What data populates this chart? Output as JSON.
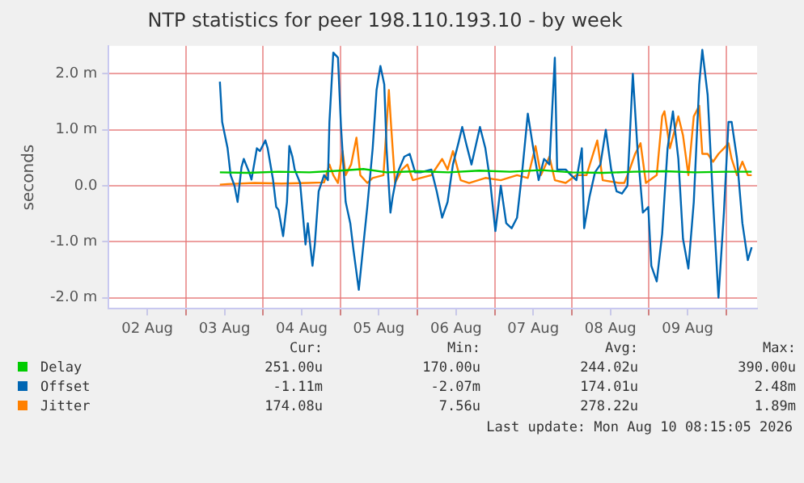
{
  "chart_data": {
    "type": "line",
    "title": "NTP statistics for peer 198.110.193.10 - by week",
    "ylabel": "seconds",
    "xlim": [
      "2026-08-02T00:00",
      "2026-08-10T09:36"
    ],
    "xticks": [
      {
        "value": "2026-08-02T12:00",
        "label": "02 Aug"
      },
      {
        "value": "2026-08-03T00:00",
        "label": null
      },
      {
        "value": "2026-08-03T12:00",
        "label": "03 Aug"
      },
      {
        "value": "2026-08-04T00:00",
        "label": null
      },
      {
        "value": "2026-08-04T12:00",
        "label": "04 Aug"
      },
      {
        "value": "2026-08-05T00:00",
        "label": null
      },
      {
        "value": "2026-08-05T12:00",
        "label": "05 Aug"
      },
      {
        "value": "2026-08-06T00:00",
        "label": null
      },
      {
        "value": "2026-08-06T12:00",
        "label": "06 Aug"
      },
      {
        "value": "2026-08-07T00:00",
        "label": null
      },
      {
        "value": "2026-08-07T12:00",
        "label": "07 Aug"
      },
      {
        "value": "2026-08-08T00:00",
        "label": null
      },
      {
        "value": "2026-08-08T12:00",
        "label": "08 Aug"
      },
      {
        "value": "2026-08-09T00:00",
        "label": null
      },
      {
        "value": "2026-08-09T12:00",
        "label": "09 Aug"
      },
      {
        "value": "2026-08-10T00:00",
        "label": null
      }
    ],
    "ylim": [
      -2.2,
      2.5
    ],
    "yticks": [
      {
        "value": -2,
        "label": "-2.0 m"
      },
      {
        "value": -1,
        "label": "-1.0 m"
      },
      {
        "value": 0,
        "label": "0.0"
      },
      {
        "value": 1,
        "label": "1.0 m"
      },
      {
        "value": 2,
        "label": "2.0 m"
      }
    ],
    "grid": true,
    "legend": "bottom",
    "marker": "none",
    "line_style": "solid",
    "series": [
      {
        "name": "Delay",
        "color": "#00cc00",
        "x": [
          "2026-08-03T10:34",
          "2026-08-03T19:12",
          "2026-08-04T04:48",
          "2026-08-04T14:24",
          "2026-08-05T00:00",
          "2026-08-05T07:12",
          "2026-08-05T14:24",
          "2026-08-06T00:00",
          "2026-08-06T09:36",
          "2026-08-06T19:12",
          "2026-08-07T04:48",
          "2026-08-07T14:24",
          "2026-08-08T00:00",
          "2026-08-08T09:36",
          "2026-08-08T19:12",
          "2026-08-09T04:48",
          "2026-08-09T14:24",
          "2026-08-10T00:00",
          "2026-08-10T07:55"
        ],
        "values": [
          0.24,
          0.23,
          0.25,
          0.24,
          0.27,
          0.3,
          0.24,
          0.26,
          0.24,
          0.27,
          0.25,
          0.28,
          0.24,
          0.23,
          0.25,
          0.26,
          0.24,
          0.25,
          0.25
        ]
      },
      {
        "name": "Offset",
        "color": "#0066b3",
        "x": [
          "2026-08-03T10:34",
          "2026-08-03T11:17",
          "2026-08-03T12:58",
          "2026-08-03T13:55",
          "2026-08-03T15:07",
          "2026-08-03T16:05",
          "2026-08-03T17:17",
          "2026-08-03T18:00",
          "2026-08-03T19:41",
          "2026-08-03T20:24",
          "2026-08-03T22:05",
          "2026-08-03T23:02",
          "2026-08-04T00:43",
          "2026-08-04T01:26",
          "2026-08-04T03:07",
          "2026-08-04T04:05",
          "2026-08-04T04:48",
          "2026-08-04T06:14",
          "2026-08-04T07:26",
          "2026-08-04T08:10",
          "2026-08-04T09:07",
          "2026-08-04T09:50",
          "2026-08-04T11:31",
          "2026-08-04T13:12",
          "2026-08-04T13:55",
          "2026-08-04T15:22",
          "2026-08-04T16:05",
          "2026-08-04T17:17",
          "2026-08-04T18:58",
          "2026-08-04T20:10",
          "2026-08-04T20:38",
          "2026-08-04T21:50",
          "2026-08-04T23:17",
          "2026-08-05T00:14",
          "2026-08-05T01:41",
          "2026-08-05T03:07",
          "2026-08-05T04:05",
          "2026-08-05T05:46",
          "2026-08-05T07:12",
          "2026-08-05T08:24",
          "2026-08-05T10:05",
          "2026-08-05T11:17",
          "2026-08-05T12:29",
          "2026-08-05T13:41",
          "2026-08-05T14:24",
          "2026-08-05T15:36",
          "2026-08-05T16:19",
          "2026-08-05T17:17",
          "2026-08-05T18:14",
          "2026-08-05T19:55",
          "2026-08-05T21:36",
          "2026-08-05T23:17",
          "2026-08-06T00:58",
          "2026-08-06T04:19",
          "2026-08-06T06:00",
          "2026-08-06T07:41",
          "2026-08-06T09:22",
          "2026-08-06T11:02",
          "2026-08-06T12:43",
          "2026-08-06T13:55",
          "2026-08-06T15:07",
          "2026-08-06T16:48",
          "2026-08-06T19:26",
          "2026-08-06T21:07",
          "2026-08-06T22:34",
          "2026-08-07T00:14",
          "2026-08-07T01:55",
          "2026-08-07T03:36",
          "2026-08-07T05:17",
          "2026-08-07T06:58",
          "2026-08-07T08:38",
          "2026-08-07T10:19",
          "2026-08-07T12:00",
          "2026-08-07T13:41",
          "2026-08-07T15:22",
          "2026-08-07T17:02",
          "2026-08-07T18:43",
          "2026-08-07T19:26",
          "2026-08-07T22:05",
          "2026-08-07T23:46",
          "2026-08-08T01:26",
          "2026-08-08T03:07",
          "2026-08-08T03:50",
          "2026-08-08T05:31",
          "2026-08-08T07:12",
          "2026-08-08T08:53",
          "2026-08-08T10:34",
          "2026-08-08T12:14",
          "2026-08-08T13:55",
          "2026-08-08T15:36",
          "2026-08-08T17:17",
          "2026-08-08T18:58",
          "2026-08-08T20:24",
          "2026-08-08T22:05",
          "2026-08-08T23:46",
          "2026-08-09T00:43",
          "2026-08-09T02:24",
          "2026-08-09T04:05",
          "2026-08-09T05:46",
          "2026-08-09T07:26",
          "2026-08-09T09:07",
          "2026-08-09T10:34",
          "2026-08-09T12:14",
          "2026-08-09T13:55",
          "2026-08-09T15:36",
          "2026-08-09T16:34",
          "2026-08-09T18:14",
          "2026-08-09T19:55",
          "2026-08-09T21:36",
          "2026-08-09T23:17",
          "2026-08-10T00:43",
          "2026-08-10T01:41",
          "2026-08-10T03:22",
          "2026-08-10T05:02",
          "2026-08-10T06:43",
          "2026-08-10T07:55"
        ],
        "values": [
          1.86,
          1.14,
          0.67,
          0.19,
          0,
          -0.29,
          0.33,
          0.48,
          0.24,
          0.11,
          0.67,
          0.62,
          0.81,
          0.67,
          0.1,
          -0.38,
          -0.43,
          -0.9,
          -0.29,
          0.71,
          0.52,
          0.29,
          0.05,
          -1.05,
          -0.67,
          -1.43,
          -1.05,
          -0.1,
          0.19,
          0.1,
          1.14,
          2.38,
          2.29,
          1.05,
          -0.29,
          -0.67,
          -1.14,
          -1.86,
          -1.05,
          -0.38,
          0.67,
          1.71,
          2.14,
          1.81,
          0.67,
          -0.48,
          -0.19,
          0.1,
          0.29,
          0.52,
          0.57,
          0.24,
          0.24,
          0.29,
          -0.1,
          -0.57,
          -0.29,
          0.38,
          0.76,
          1.05,
          0.76,
          0.38,
          1.05,
          0.67,
          0.1,
          -0.81,
          0,
          -0.67,
          -0.76,
          -0.57,
          0.29,
          1.29,
          0.67,
          0.1,
          0.48,
          0.38,
          2.29,
          0.29,
          0.29,
          0.19,
          0.1,
          0.67,
          -0.76,
          -0.19,
          0.24,
          0.38,
          1.0,
          0.29,
          -0.1,
          -0.14,
          0,
          2.0,
          0.67,
          -0.48,
          -0.38,
          -1.43,
          -1.71,
          -0.86,
          0.67,
          1.33,
          0.48,
          -0.95,
          -1.48,
          -0.29,
          1.81,
          2.43,
          1.62,
          -0.29,
          -2.0,
          -0.48,
          1.14,
          1.14,
          0.48,
          -0.67,
          -1.33,
          -1.1
        ]
      },
      {
        "name": "Jitter",
        "color": "#ff8000",
        "x": [
          "2026-08-03T10:34",
          "2026-08-03T12:58",
          "2026-08-03T21:22",
          "2026-08-04T05:46",
          "2026-08-04T13:55",
          "2026-08-04T18:58",
          "2026-08-04T20:38",
          "2026-08-04T21:50",
          "2026-08-04T23:17",
          "2026-08-05T00:43",
          "2026-08-05T01:41",
          "2026-08-05T03:22",
          "2026-08-05T05:02",
          "2026-08-05T06:14",
          "2026-08-05T08:24",
          "2026-08-05T10:05",
          "2026-08-05T13:26",
          "2026-08-05T15:07",
          "2026-08-05T15:50",
          "2026-08-05T17:02",
          "2026-08-05T19:12",
          "2026-08-05T20:53",
          "2026-08-05T22:34",
          "2026-08-06T00:58",
          "2026-08-06T04:19",
          "2026-08-06T07:41",
          "2026-08-06T09:22",
          "2026-08-06T11:02",
          "2026-08-06T13:26",
          "2026-08-06T16:05",
          "2026-08-06T21:07",
          "2026-08-07T01:55",
          "2026-08-07T06:58",
          "2026-08-07T10:19",
          "2026-08-07T12:43",
          "2026-08-07T14:24",
          "2026-08-07T17:02",
          "2026-08-07T18:43",
          "2026-08-07T22:05",
          "2026-08-08T01:26",
          "2026-08-08T04:34",
          "2026-08-08T07:55",
          "2026-08-08T09:36",
          "2026-08-08T14:38",
          "2026-08-08T16:19",
          "2026-08-08T18:00",
          "2026-08-08T19:41",
          "2026-08-08T21:22",
          "2026-08-08T23:02",
          "2026-08-09T02:24",
          "2026-08-09T04:05",
          "2026-08-09T04:48",
          "2026-08-09T06:29",
          "2026-08-09T09:07",
          "2026-08-09T10:34",
          "2026-08-09T12:14",
          "2026-08-09T13:55",
          "2026-08-09T15:36",
          "2026-08-09T16:34",
          "2026-08-09T18:14",
          "2026-08-09T19:55",
          "2026-08-09T21:36",
          "2026-08-09T23:17",
          "2026-08-10T00:43",
          "2026-08-10T01:41",
          "2026-08-10T03:22",
          "2026-08-10T05:02",
          "2026-08-10T06:43",
          "2026-08-10T07:55"
        ],
        "values": [
          0.02,
          0.03,
          0.05,
          0.04,
          0.05,
          0.06,
          0.38,
          0.19,
          0.05,
          0.62,
          0.19,
          0.38,
          0.86,
          0.19,
          0.05,
          0.14,
          0.19,
          1.71,
          1.05,
          0.05,
          0.29,
          0.38,
          0.1,
          0.14,
          0.19,
          0.48,
          0.29,
          0.62,
          0.1,
          0.05,
          0.14,
          0.1,
          0.19,
          0.14,
          0.71,
          0.19,
          0.52,
          0.1,
          0.05,
          0.19,
          0.19,
          0.81,
          0.1,
          0.05,
          0.05,
          0.29,
          0.57,
          0.76,
          0.05,
          0.19,
          1.24,
          1.33,
          0.67,
          1.24,
          0.9,
          0.19,
          1.24,
          1.43,
          0.57,
          0.57,
          0.43,
          0.57,
          0.67,
          0.76,
          0.48,
          0.19,
          0.43,
          0.19,
          0.19
        ]
      }
    ],
    "annotations": [
      "Cur:",
      "Min:",
      "Avg:",
      "Max:",
      "251.00u",
      "170.00u",
      "244.02u",
      "390.00u",
      "-1.11m",
      "-2.07m",
      "174.01u",
      "2.48m",
      "174.08u",
      "7.56u",
      "278.22u",
      "1.89m",
      "Last update: Mon Aug 10 08:15:05 2026"
    ]
  }
}
